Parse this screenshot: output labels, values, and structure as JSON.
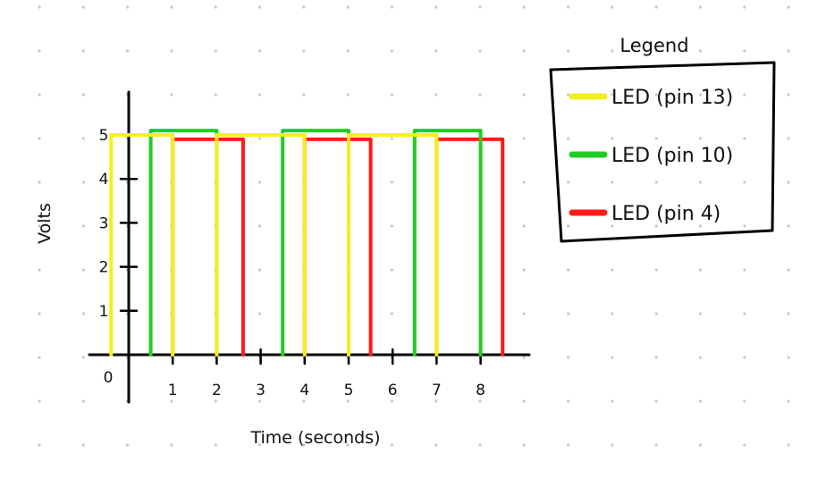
{
  "chart_data": {
    "type": "line",
    "title": "",
    "xlabel": "Time (seconds)",
    "ylabel": "Volts",
    "xlim": [
      0,
      8.6
    ],
    "ylim": [
      0,
      5
    ],
    "x_ticks": [
      "1",
      "2",
      "3",
      "4",
      "5",
      "6",
      "7",
      "8"
    ],
    "y_ticks": [
      "1",
      "2",
      "3",
      "4",
      "5"
    ],
    "origin_label": "0",
    "grid": "dotted background",
    "legend": {
      "title": "Legend",
      "placement": "top-right",
      "entries": [
        {
          "label": "LED (pin 13)",
          "color": "#f5ef1c"
        },
        {
          "label": "LED (pin 10)",
          "color": "#22cc22"
        },
        {
          "label": "LED (pin 4)",
          "color": "#ff1a1a"
        }
      ]
    },
    "series": [
      {
        "name": "LED (pin 13)",
        "color": "#f5ef1c",
        "pulses": [
          [
            -0.4,
            1.0
          ],
          [
            2.0,
            4.0
          ],
          [
            5.0,
            7.0
          ]
        ],
        "high": 5.0
      },
      {
        "name": "LED (pin 10)",
        "color": "#22cc22",
        "pulses": [
          [
            0.5,
            2.0
          ],
          [
            3.5,
            5.0
          ],
          [
            6.5,
            8.0
          ]
        ],
        "high": 5.1
      },
      {
        "name": "LED (pin 4)",
        "color": "#ff1a1a",
        "pulses": [
          [
            1.0,
            2.6
          ],
          [
            4.0,
            5.5
          ],
          [
            7.0,
            8.5
          ]
        ],
        "high": 4.9
      }
    ]
  }
}
